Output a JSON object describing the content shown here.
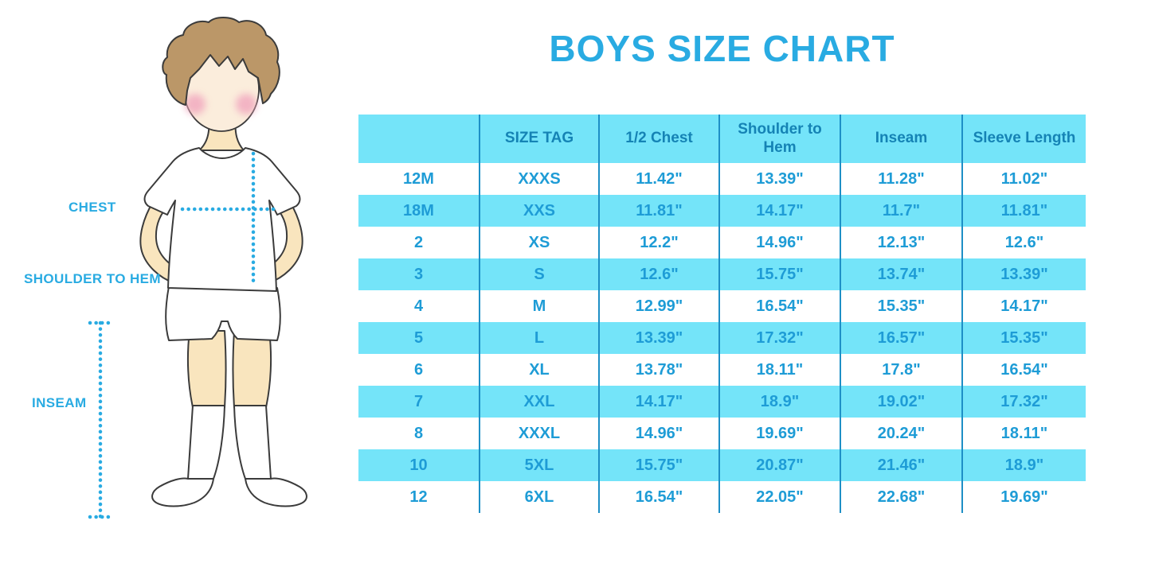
{
  "title": "BOYS SIZE CHART",
  "figure": {
    "labels": {
      "chest": "CHEST",
      "shoulder_to_hem": "SHOULDER TO HEM",
      "inseam": "INSEAM"
    }
  },
  "table": {
    "headers": [
      "",
      "SIZE TAG",
      "1/2 Chest",
      "Shoulder to Hem",
      "Inseam",
      "Sleeve Length"
    ],
    "rows": [
      [
        "12M",
        "XXXS",
        "11.42\"",
        "13.39\"",
        "11.28\"",
        "11.02\""
      ],
      [
        "18M",
        "XXS",
        "11.81\"",
        "14.17\"",
        "11.7\"",
        "11.81\""
      ],
      [
        "2",
        "XS",
        "12.2\"",
        "14.96\"",
        "12.13\"",
        "12.6\""
      ],
      [
        "3",
        "S",
        "12.6\"",
        "15.75\"",
        "13.74\"",
        "13.39\""
      ],
      [
        "4",
        "M",
        "12.99\"",
        "16.54\"",
        "15.35\"",
        "14.17\""
      ],
      [
        "5",
        "L",
        "13.39\"",
        "17.32\"",
        "16.57\"",
        "15.35\""
      ],
      [
        "6",
        "XL",
        "13.78\"",
        "18.11\"",
        "17.8\"",
        "16.54\""
      ],
      [
        "7",
        "XXL",
        "14.17\"",
        "18.9\"",
        "19.02\"",
        "17.32\""
      ],
      [
        "8",
        "XXXL",
        "14.96\"",
        "19.69\"",
        "20.24\"",
        "18.11\""
      ],
      [
        "10",
        "5XL",
        "15.75\"",
        "20.87\"",
        "21.46\"",
        "18.9\""
      ],
      [
        "12",
        "6XL",
        "16.54\"",
        "22.05\"",
        "22.68\"",
        "19.69\""
      ]
    ]
  },
  "colors": {
    "accent_blue": "#29ABE2",
    "band_cyan": "#74E4F9",
    "header_text": "#1583B5",
    "cell_text": "#1E9CD6",
    "column_separator": "#1E8FC6"
  }
}
